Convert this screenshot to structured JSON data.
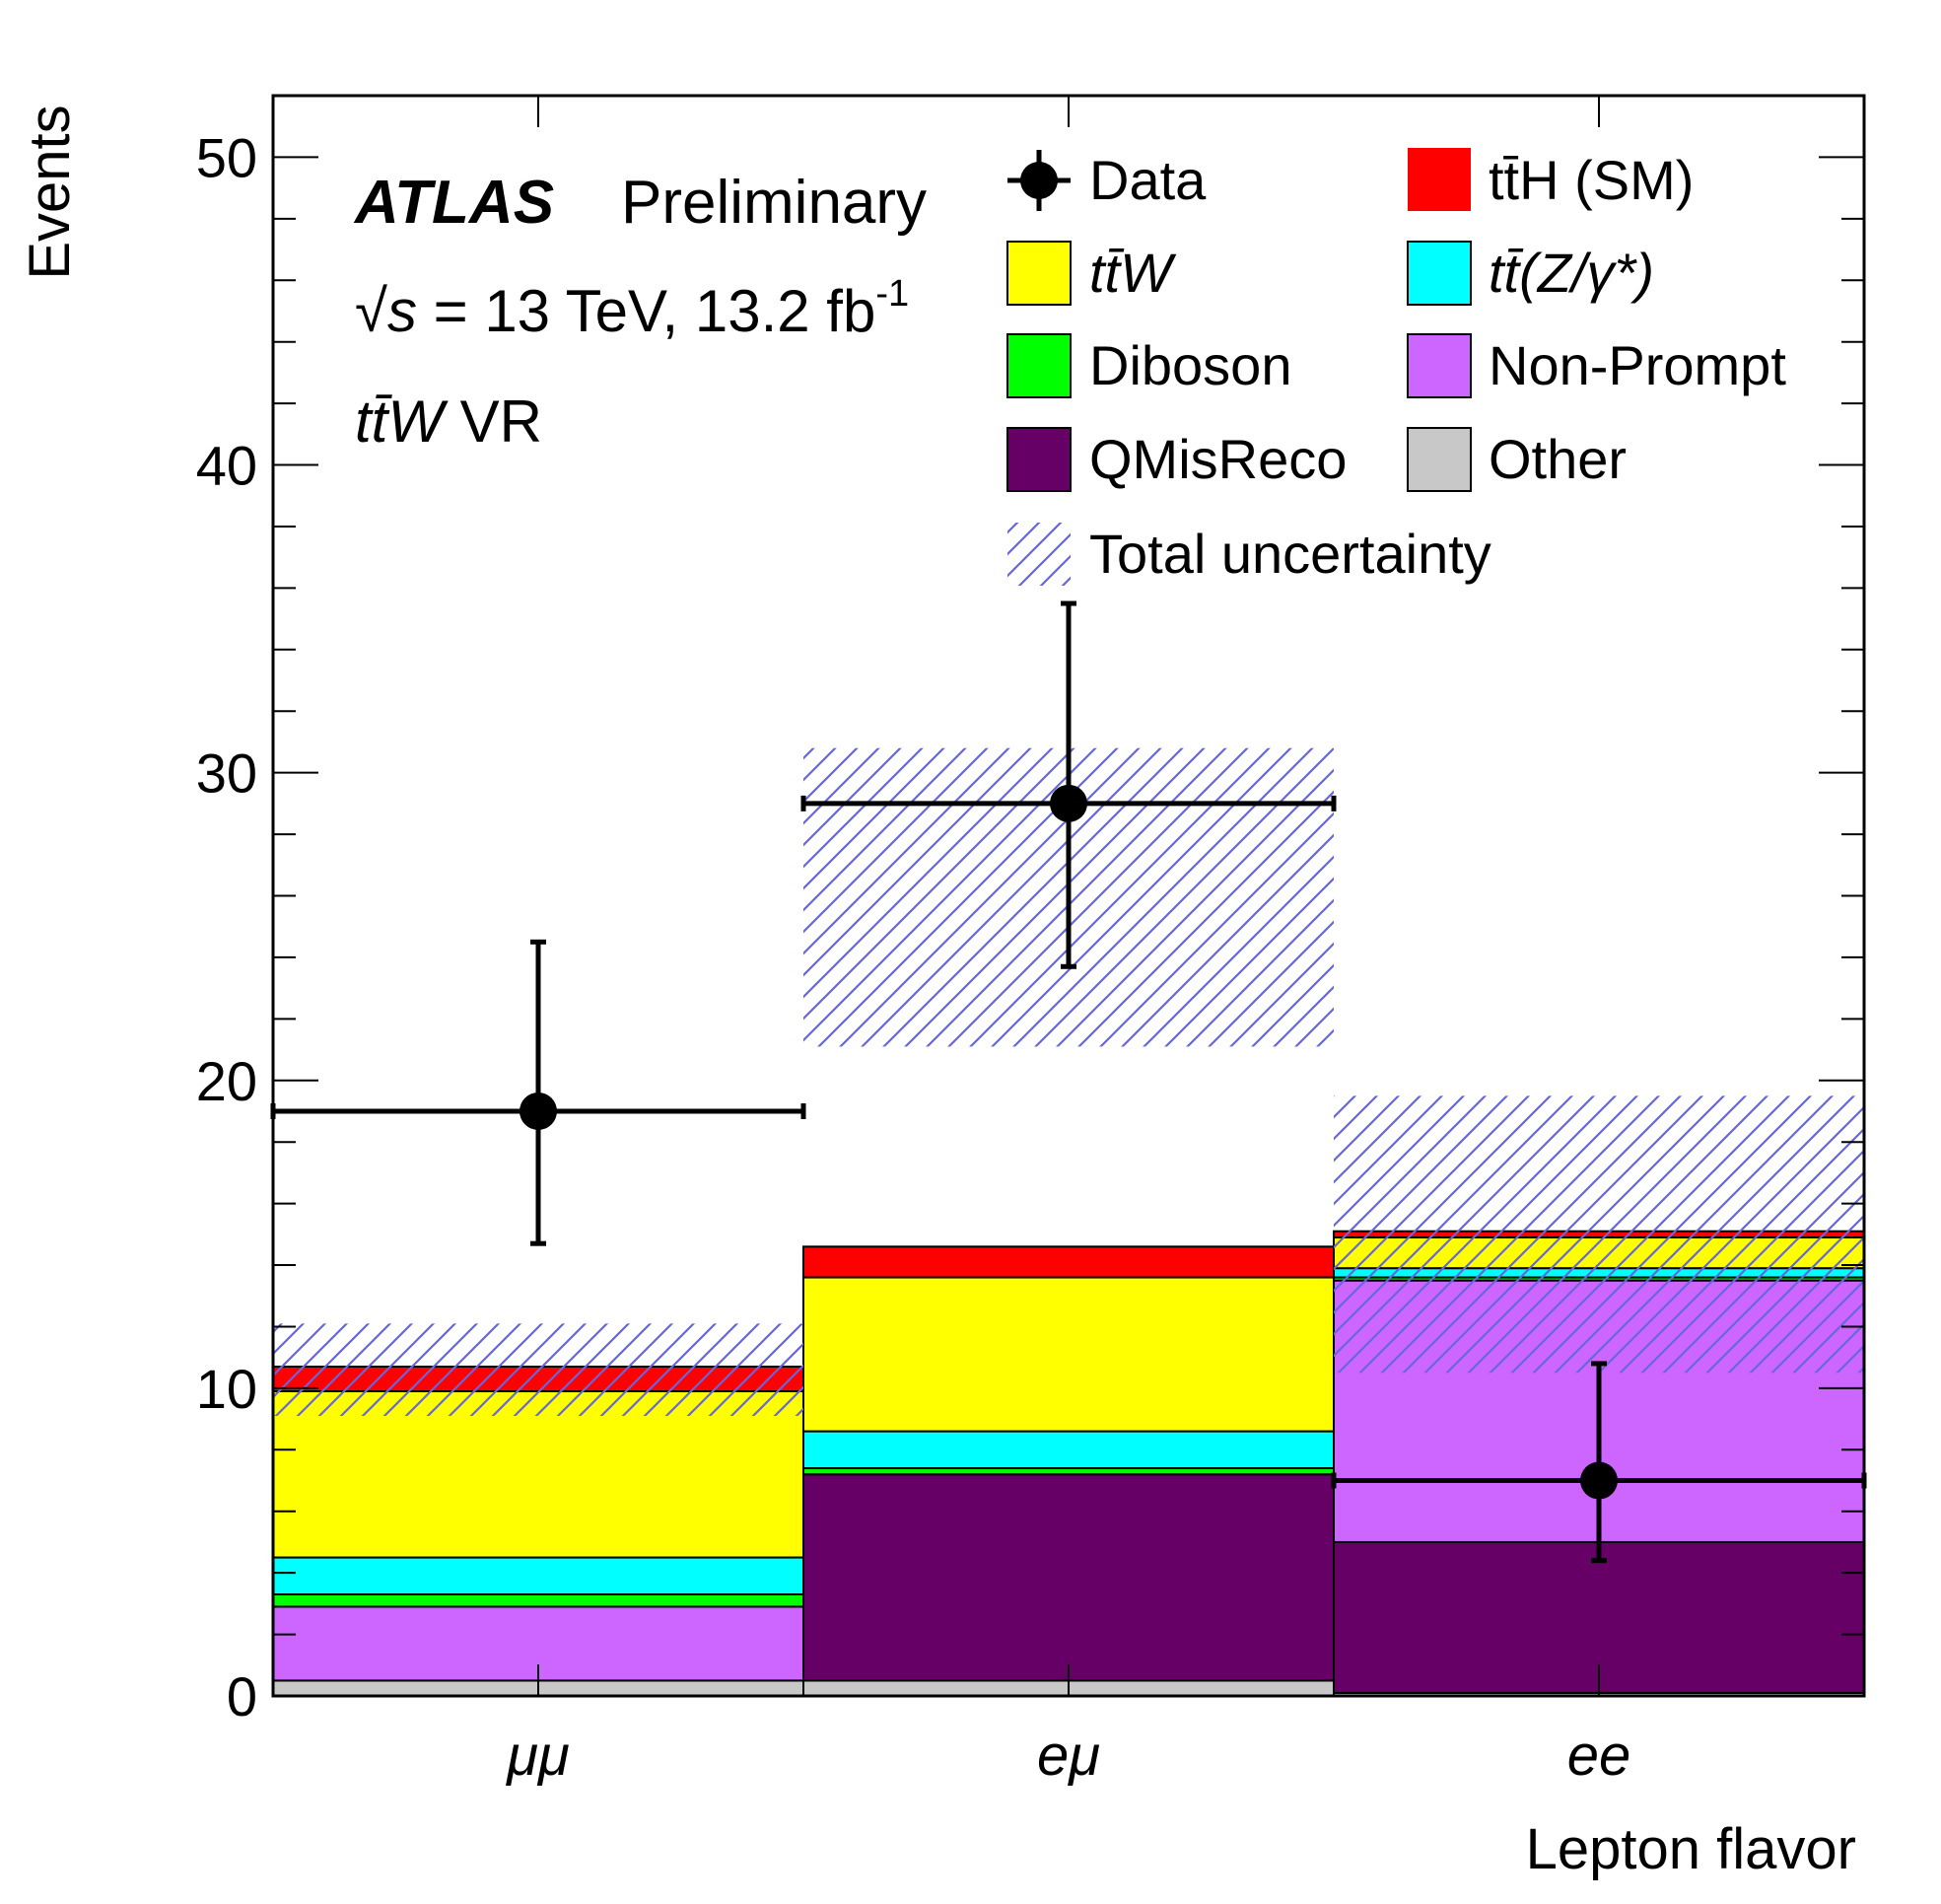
{
  "chart_data": {
    "type": "bar",
    "stacked": true,
    "title": "",
    "xlabel": "Lepton flavor",
    "ylabel": "Events",
    "ylim": [
      0,
      52
    ],
    "yticks": [
      0,
      10,
      20,
      30,
      40,
      50
    ],
    "categories": [
      "μμ",
      "eμ",
      "ee"
    ],
    "series": [
      {
        "key": "other",
        "name": "Other",
        "color": "#c8c8c8",
        "values": [
          0.5,
          0.5,
          0.1
        ]
      },
      {
        "key": "nonprompt",
        "name": "Non-Prompt",
        "color": "#cc66ff",
        "values": [
          2.4,
          0,
          8.5
        ]
      },
      {
        "key": "qmis",
        "name": "QMisReco",
        "color": "#660066",
        "values": [
          0,
          6.7,
          4.9
        ]
      },
      {
        "key": "diboson",
        "name": "Diboson",
        "color": "#00ff00",
        "values": [
          0.4,
          0.2,
          0.1
        ]
      },
      {
        "key": "ttz",
        "name": "tt̄(Z/γ*)",
        "color": "#00ffff",
        "values": [
          1.2,
          1.2,
          0.3
        ]
      },
      {
        "key": "ttw",
        "name": "tt̄W",
        "color": "#ffff00",
        "values": [
          5.4,
          5.0,
          1.0
        ]
      },
      {
        "key": "tth",
        "name": "tt̄H (SM)",
        "color": "#ff0000",
        "values": [
          0.8,
          1.0,
          0.2
        ]
      }
    ],
    "stack_order_note": "Non-Prompt is stacked above QMisReco in the eμ and ee bins",
    "stack_order": [
      [
        "other",
        "nonprompt",
        "qmis",
        "diboson",
        "ttz",
        "ttw",
        "tth"
      ],
      [
        "other",
        "qmis",
        "nonprompt",
        "diboson",
        "ttz",
        "ttw",
        "tth"
      ],
      [
        "other",
        "qmis",
        "nonprompt",
        "diboson",
        "ttz",
        "ttw",
        "tth"
      ]
    ],
    "data_points": [
      {
        "category": "μμ",
        "value": 19,
        "err_low": 4.3,
        "err_high": 5.5
      },
      {
        "category": "eμ",
        "value": 29,
        "err_low": 5.3,
        "err_high": 6.5
      },
      {
        "category": "ee",
        "value": 7,
        "err_low": 2.6,
        "err_high": 3.8
      }
    ],
    "uncertainty_band": [
      {
        "category": "μμ",
        "low": 9.1,
        "high": 12.1
      },
      {
        "category": "eμ",
        "low": 21.1,
        "high": 30.8
      },
      {
        "category": "ee",
        "low": 10.5,
        "high": 19.5
      }
    ],
    "annotations": {
      "experiment": "ATLAS",
      "status": "Preliminary",
      "energy_prefix": "√",
      "energy_var": "s",
      "energy_text": " = 13 TeV, 13.2 fb",
      "energy_sup": "-1",
      "region_main": "tt̄W",
      "region_suffix": " VR"
    },
    "legend": {
      "position": "top-right",
      "entries": [
        {
          "label": "Data",
          "style": "marker"
        },
        {
          "label": "tt̄H (SM)",
          "color": "#ff0000"
        },
        {
          "label": "tt̄W",
          "color": "#ffff00"
        },
        {
          "label": "tt̄(Z/γ*)",
          "color": "#00ffff"
        },
        {
          "label": "Diboson",
          "color": "#00ff00"
        },
        {
          "label": "Non-Prompt",
          "color": "#cc66ff"
        },
        {
          "label": "QMisReco",
          "color": "#660066"
        },
        {
          "label": "Other",
          "color": "#c8c8c8"
        },
        {
          "label": "Total uncertainty",
          "style": "hatch",
          "color": "#6666dd"
        }
      ]
    }
  }
}
